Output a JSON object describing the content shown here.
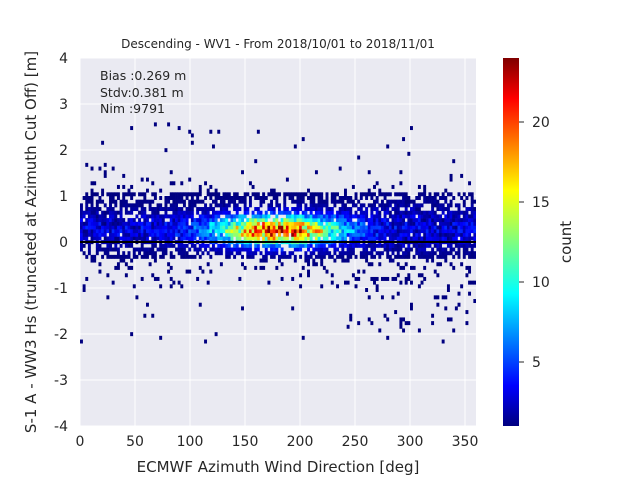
{
  "chart_data": {
    "type": "heatmap",
    "title": "Descending - WV1 - From 2018/10/01 to 2018/11/01",
    "xlabel": "ECMWF Azimuth Wind Direction [deg]",
    "ylabel": "S-1 A - WW3 Hs (truncated at Azimuth Cut Off) [m]",
    "xlim": [
      0,
      360
    ],
    "ylim": [
      -4,
      4
    ],
    "x_ticks": [
      0,
      50,
      100,
      150,
      200,
      250,
      300,
      350
    ],
    "y_ticks": [
      -4,
      -3,
      -2,
      -1,
      0,
      1,
      2,
      3,
      4
    ],
    "annotations": [
      "Bias :0.269 m",
      "Stdv:0.381 m",
      "Nim :9791"
    ],
    "colorbar": {
      "label": "count",
      "range": [
        1,
        24
      ],
      "ticks": [
        5,
        10,
        15,
        20
      ],
      "colormap": "jet"
    },
    "reference_line": {
      "y": 0
    },
    "density_peak": {
      "x": 180,
      "y": 0.25,
      "max_count": 24
    },
    "grid": true,
    "background": "#eaeaf2"
  }
}
